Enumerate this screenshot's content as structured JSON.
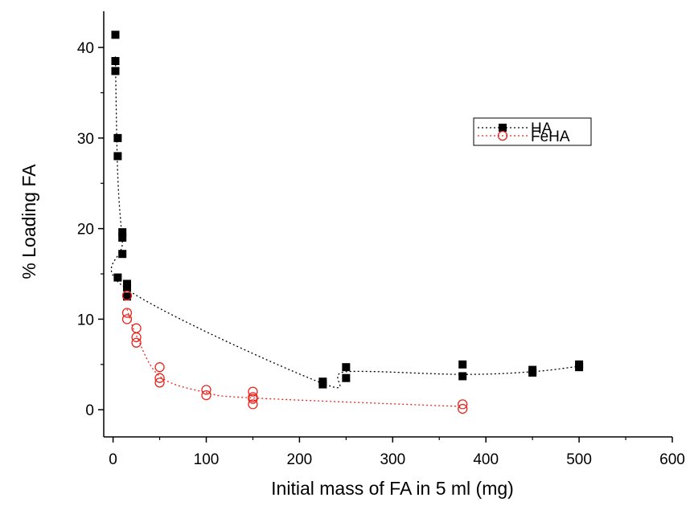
{
  "chart_data": {
    "type": "scatter",
    "title": "",
    "xlabel": "Initial mass of FA in 5 ml (mg)",
    "ylabel": "% Loading FA",
    "xlim": [
      -10,
      600
    ],
    "ylim": [
      -3,
      44
    ],
    "xticks": [
      0,
      100,
      200,
      300,
      400,
      500,
      600
    ],
    "yticks": [
      0,
      10,
      20,
      30,
      40
    ],
    "grid": false,
    "legend_position": "top-right",
    "series": [
      {
        "name": "HA",
        "color": "#000000",
        "marker": "filled-square",
        "line": "dotted",
        "points": [
          [
            2.5,
            41.4
          ],
          [
            2.5,
            38.5
          ],
          [
            2.5,
            37.4
          ],
          [
            5,
            30.0
          ],
          [
            5,
            28.0
          ],
          [
            5,
            14.6
          ],
          [
            10,
            19.6
          ],
          [
            10,
            19.0
          ],
          [
            10,
            17.2
          ],
          [
            15,
            13.9
          ],
          [
            15,
            13.5
          ],
          [
            15,
            12.5
          ],
          [
            225,
            3.1
          ],
          [
            225,
            2.8
          ],
          [
            250,
            4.7
          ],
          [
            250,
            3.5
          ],
          [
            375,
            5.0
          ],
          [
            375,
            3.7
          ],
          [
            450,
            4.4
          ],
          [
            450,
            4.1
          ],
          [
            500,
            5.0
          ],
          [
            500,
            4.7
          ]
        ],
        "trend": [
          [
            2.5,
            39.0
          ],
          [
            5,
            26.0
          ],
          [
            10,
            18.6
          ],
          [
            15,
            13.3
          ],
          [
            225,
            2.9
          ],
          [
            250,
            4.2
          ],
          [
            375,
            3.9
          ],
          [
            450,
            4.2
          ],
          [
            500,
            4.8
          ]
        ]
      },
      {
        "name": "FeHA",
        "color": "#e8251d",
        "marker": "open-circle",
        "line": "dotted",
        "points": [
          [
            15,
            12.6
          ],
          [
            15,
            10.7
          ],
          [
            15,
            10.0
          ],
          [
            25,
            9.0
          ],
          [
            25,
            8.0
          ],
          [
            25,
            7.4
          ],
          [
            50,
            4.7
          ],
          [
            50,
            3.5
          ],
          [
            50,
            3.0
          ],
          [
            100,
            2.2
          ],
          [
            100,
            1.6
          ],
          [
            150,
            2.0
          ],
          [
            150,
            1.4
          ],
          [
            150,
            1.2
          ],
          [
            150,
            0.6
          ],
          [
            375,
            0.6
          ],
          [
            375,
            0.1
          ]
        ],
        "trend": [
          [
            15,
            11.1
          ],
          [
            25,
            8.2
          ],
          [
            50,
            3.7
          ],
          [
            100,
            1.9
          ],
          [
            150,
            1.3
          ],
          [
            375,
            0.35
          ]
        ]
      }
    ]
  }
}
